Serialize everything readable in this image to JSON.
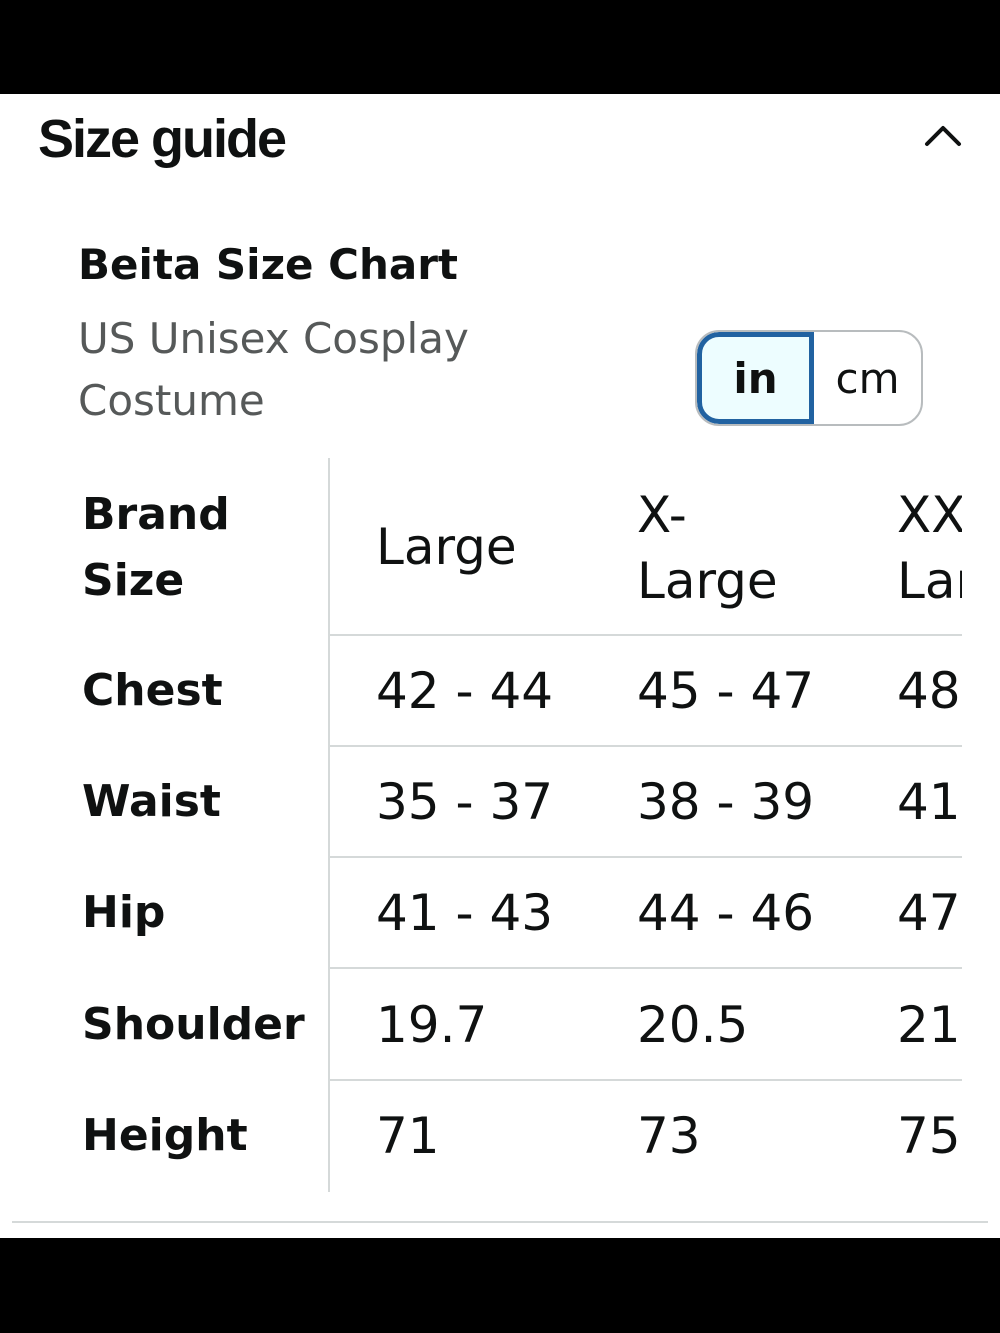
{
  "size_guide": {
    "heading": "Size guide",
    "collapse_icon": "chevron-up-icon"
  },
  "chart": {
    "title": "Beita Size Chart",
    "subtitle": "US Unisex Cosplay Costume"
  },
  "unit_toggle": {
    "options": [
      "in",
      "cm"
    ],
    "selected": "in",
    "active_color": "#2162a1"
  },
  "table": {
    "header_label": "Brand\nSize",
    "columns": [
      "Large",
      "X-\nLarge",
      "XX\nLar"
    ],
    "rows": [
      {
        "label": "Chest",
        "values": [
          "42 - 44",
          "45 - 47",
          "48"
        ]
      },
      {
        "label": "Waist",
        "values": [
          "35 - 37",
          "38 - 39",
          "41"
        ]
      },
      {
        "label": "Hip",
        "values": [
          "41 - 43",
          "44 - 46",
          "47"
        ]
      },
      {
        "label": "Shoulder",
        "values": [
          "19.7",
          "20.5",
          "21"
        ]
      },
      {
        "label": "Height",
        "values": [
          "71",
          "73",
          "75"
        ]
      }
    ]
  }
}
